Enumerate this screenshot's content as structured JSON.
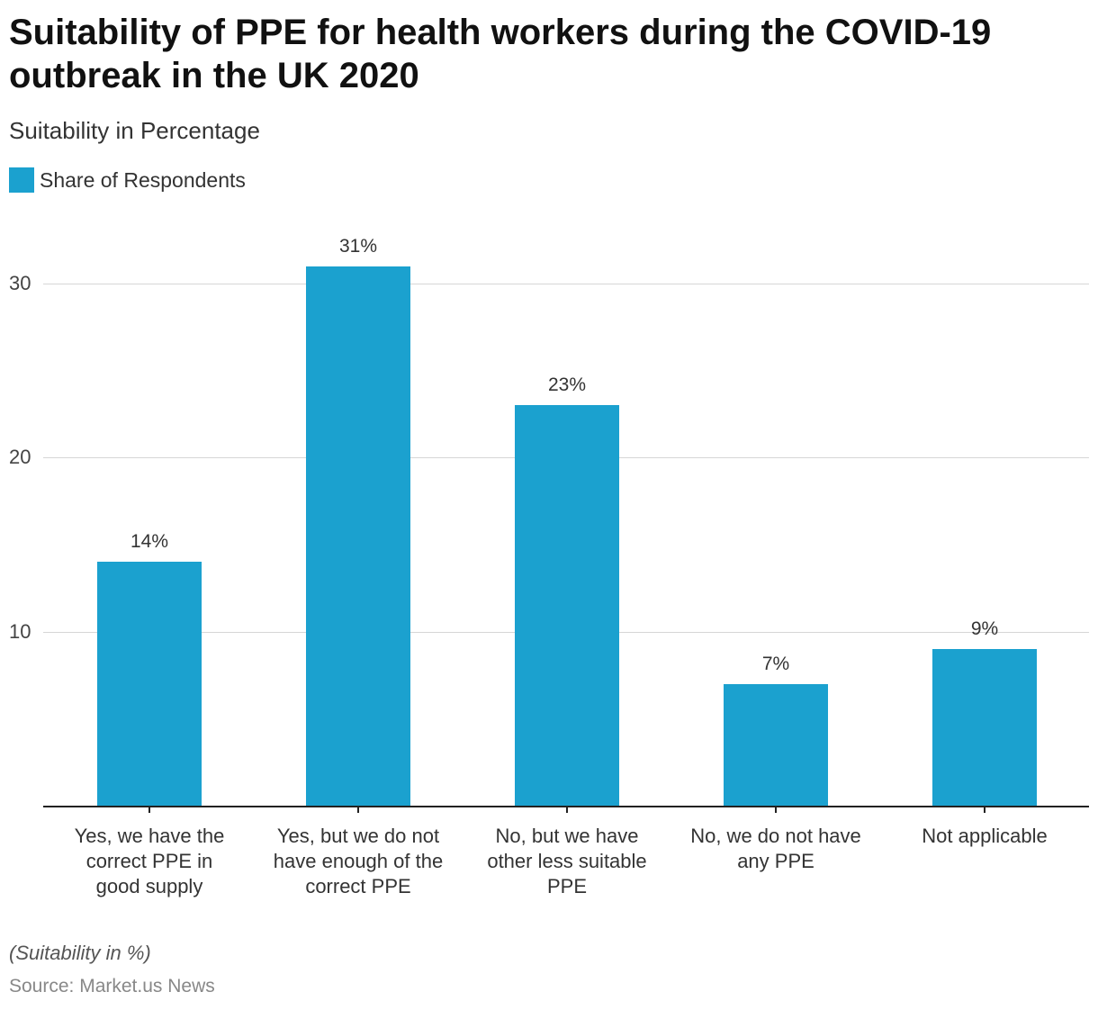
{
  "chart_data": {
    "type": "bar",
    "title": "Suitability of PPE for health workers during the COVID-19 outbreak in the UK 2020",
    "subtitle": "Suitability in Percentage",
    "legend": {
      "entries": [
        "Share of Respondents"
      ],
      "placement": "top-left"
    },
    "categories": [
      [
        "Yes, we have the",
        "correct PPE in",
        "good supply"
      ],
      [
        "Yes, but we do not",
        "have enough of the",
        "correct PPE"
      ],
      [
        "No, but we have",
        "other less suitable",
        "PPE"
      ],
      [
        "No, we do not have",
        "any PPE"
      ],
      [
        "Not applicable"
      ]
    ],
    "series": [
      {
        "name": "Share of Respondents",
        "values": [
          14,
          31,
          23,
          7,
          9
        ],
        "color": "#1ba1cf"
      }
    ],
    "data_labels": [
      "14%",
      "31%",
      "23%",
      "7%",
      "9%"
    ],
    "yticks": [
      10,
      20,
      30
    ],
    "ylim": [
      0,
      33
    ],
    "grid": true,
    "xlabel": "",
    "ylabel": ""
  },
  "footer": {
    "note": "(Suitability in %)",
    "source": "Source: Market.us News"
  }
}
